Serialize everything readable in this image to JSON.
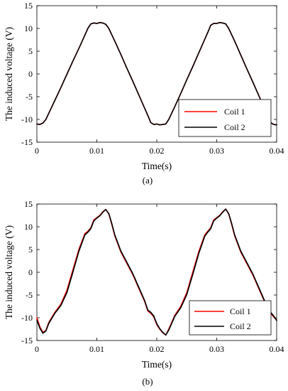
{
  "chart_data": [
    {
      "type": "line",
      "caption": "(a)",
      "xlabel": "Time(s)",
      "ylabel": "The induced voltage (V)",
      "xlim": [
        0,
        0.04
      ],
      "ylim": [
        -15,
        15
      ],
      "xticks": [
        "0",
        "0.01",
        "0.02",
        "0.03",
        "0.04"
      ],
      "yticks": [
        "-15",
        "-10",
        "-5",
        "0",
        "5",
        "10",
        "15"
      ],
      "legend": "bottom-right",
      "grid": false,
      "series": [
        {
          "name": "Coil 1",
          "color": "#ff0000",
          "x": [
            0,
            0.0005,
            0.001,
            0.0015,
            0.002,
            0.003,
            0.004,
            0.005,
            0.006,
            0.007,
            0.008,
            0.0085,
            0.009,
            0.0095,
            0.01,
            0.0105,
            0.011,
            0.0115,
            0.012,
            0.013,
            0.014,
            0.015,
            0.016,
            0.017,
            0.018,
            0.0185,
            0.019,
            0.0195,
            0.02,
            0.0205,
            0.021,
            0.0215,
            0.022,
            0.023,
            0.024,
            0.025,
            0.026,
            0.027,
            0.028,
            0.0285,
            0.029,
            0.0295,
            0.03,
            0.0305,
            0.031,
            0.0315,
            0.032,
            0.033,
            0.034,
            0.035,
            0.036,
            0.037,
            0.038,
            0.0385,
            0.039,
            0.0395,
            0.04
          ],
          "values": [
            -11.0,
            -11.1,
            -10.8,
            -10.0,
            -8.6,
            -5.8,
            -3.0,
            -0.1,
            2.8,
            5.6,
            8.5,
            10.0,
            11.0,
            11.2,
            11.1,
            11.3,
            11.2,
            10.9,
            10.0,
            7.2,
            4.3,
            1.3,
            -1.6,
            -4.6,
            -7.6,
            -9.1,
            -10.7,
            -11.1,
            -11.0,
            -11.2,
            -11.1,
            -11.0,
            -10.0,
            -7.2,
            -4.3,
            -1.3,
            1.6,
            4.6,
            7.6,
            9.1,
            10.7,
            11.1,
            11.1,
            11.3,
            11.2,
            11.0,
            10.0,
            7.2,
            4.2,
            1.2,
            -1.7,
            -4.7,
            -7.7,
            -9.2,
            -10.7,
            -11.1,
            -11.2
          ]
        },
        {
          "name": "Coil 2",
          "color": "#000000",
          "x": [
            0,
            0.0005,
            0.001,
            0.0015,
            0.002,
            0.003,
            0.004,
            0.005,
            0.006,
            0.007,
            0.008,
            0.0085,
            0.009,
            0.0095,
            0.01,
            0.0105,
            0.011,
            0.0115,
            0.012,
            0.013,
            0.014,
            0.015,
            0.016,
            0.017,
            0.018,
            0.0185,
            0.019,
            0.0195,
            0.02,
            0.0205,
            0.021,
            0.0215,
            0.022,
            0.023,
            0.024,
            0.025,
            0.026,
            0.027,
            0.028,
            0.0285,
            0.029,
            0.0295,
            0.03,
            0.0305,
            0.031,
            0.0315,
            0.032,
            0.033,
            0.034,
            0.035,
            0.036,
            0.037,
            0.038,
            0.0385,
            0.039,
            0.0395,
            0.04
          ],
          "values": [
            -11.0,
            -11.1,
            -10.8,
            -10.0,
            -8.6,
            -5.8,
            -3.0,
            -0.1,
            2.8,
            5.6,
            8.5,
            10.0,
            11.0,
            11.2,
            11.1,
            11.3,
            11.2,
            10.9,
            10.0,
            7.2,
            4.3,
            1.3,
            -1.6,
            -4.6,
            -7.6,
            -9.1,
            -10.7,
            -11.1,
            -11.0,
            -11.2,
            -11.1,
            -11.0,
            -10.0,
            -7.2,
            -4.3,
            -1.3,
            1.6,
            4.6,
            7.6,
            9.1,
            10.7,
            11.1,
            11.1,
            11.3,
            11.2,
            11.0,
            10.0,
            7.2,
            4.2,
            1.2,
            -1.7,
            -4.7,
            -7.7,
            -9.2,
            -10.7,
            -11.1,
            -11.2
          ]
        }
      ]
    },
    {
      "type": "line",
      "caption": "(b)",
      "xlabel": "Time(s)",
      "ylabel": "The induced voltage (V)",
      "xlim": [
        0,
        0.04
      ],
      "ylim": [
        -15,
        15
      ],
      "xticks": [
        "0",
        "0.01",
        "0.02",
        "0.03",
        "0.04"
      ],
      "yticks": [
        "-15",
        "-10",
        "-5",
        "0",
        "5",
        "10",
        "15"
      ],
      "legend": "bottom-right",
      "grid": false,
      "series": [
        {
          "name": "Coil 1",
          "color": "#ff0000",
          "x": [
            0,
            0.0005,
            0.001,
            0.0015,
            0.002,
            0.003,
            0.004,
            0.005,
            0.006,
            0.007,
            0.008,
            0.0085,
            0.009,
            0.0095,
            0.01,
            0.0105,
            0.011,
            0.0115,
            0.012,
            0.0125,
            0.013,
            0.014,
            0.015,
            0.016,
            0.017,
            0.018,
            0.0185,
            0.019,
            0.0195,
            0.02,
            0.0205,
            0.021,
            0.0215,
            0.022,
            0.0225,
            0.023,
            0.024,
            0.025,
            0.026,
            0.027,
            0.028,
            0.0285,
            0.029,
            0.0295,
            0.03,
            0.0305,
            0.031,
            0.0315,
            0.032,
            0.0325,
            0.033,
            0.034,
            0.035,
            0.036,
            0.037,
            0.038,
            0.0385,
            0.039,
            0.0395,
            0.04
          ],
          "values": [
            -10.0,
            -12.0,
            -13.2,
            -12.8,
            -11.0,
            -8.8,
            -7.0,
            -4.0,
            0.5,
            5.0,
            8.5,
            9.0,
            9.8,
            11.5,
            12.0,
            12.5,
            13.3,
            13.8,
            12.8,
            10.5,
            8.0,
            4.5,
            2.0,
            -0.5,
            -3.5,
            -6.5,
            -8.5,
            -9.0,
            -9.8,
            -11.5,
            -12.5,
            -13.3,
            -13.8,
            -12.5,
            -11.0,
            -9.5,
            -7.5,
            -4.5,
            0.0,
            4.5,
            8.2,
            9.0,
            9.8,
            11.5,
            12.0,
            12.5,
            13.3,
            13.9,
            12.8,
            10.5,
            8.0,
            4.5,
            2.0,
            -0.5,
            -3.5,
            -6.5,
            -8.3,
            -9.0,
            -9.8,
            -10.5
          ]
        },
        {
          "name": "Coil 2",
          "color": "#000000",
          "x": [
            0,
            0.0005,
            0.001,
            0.0015,
            0.002,
            0.003,
            0.004,
            0.005,
            0.006,
            0.007,
            0.008,
            0.0085,
            0.009,
            0.0095,
            0.01,
            0.0105,
            0.011,
            0.0115,
            0.012,
            0.0125,
            0.013,
            0.014,
            0.015,
            0.016,
            0.017,
            0.018,
            0.0185,
            0.019,
            0.0195,
            0.02,
            0.0205,
            0.021,
            0.0215,
            0.022,
            0.0225,
            0.023,
            0.024,
            0.025,
            0.026,
            0.027,
            0.028,
            0.0285,
            0.029,
            0.0295,
            0.03,
            0.0305,
            0.031,
            0.0315,
            0.032,
            0.0325,
            0.033,
            0.034,
            0.035,
            0.036,
            0.037,
            0.038,
            0.0385,
            0.039,
            0.0395,
            0.04
          ],
          "values": [
            -10.5,
            -12.3,
            -13.4,
            -12.9,
            -11.2,
            -9.0,
            -7.3,
            -4.5,
            0.0,
            4.6,
            8.2,
            8.8,
            9.6,
            11.3,
            11.9,
            12.4,
            13.2,
            13.8,
            12.9,
            10.7,
            8.2,
            4.7,
            2.2,
            -0.3,
            -3.3,
            -6.3,
            -8.3,
            -8.8,
            -9.6,
            -11.3,
            -12.4,
            -13.2,
            -13.8,
            -12.7,
            -11.2,
            -9.7,
            -7.8,
            -4.9,
            -0.5,
            4.1,
            7.9,
            8.8,
            9.6,
            11.3,
            11.9,
            12.4,
            13.2,
            13.9,
            12.9,
            10.7,
            8.2,
            4.7,
            2.2,
            -0.3,
            -3.3,
            -6.3,
            -8.1,
            -8.8,
            -9.6,
            -10.6
          ]
        }
      ]
    }
  ]
}
